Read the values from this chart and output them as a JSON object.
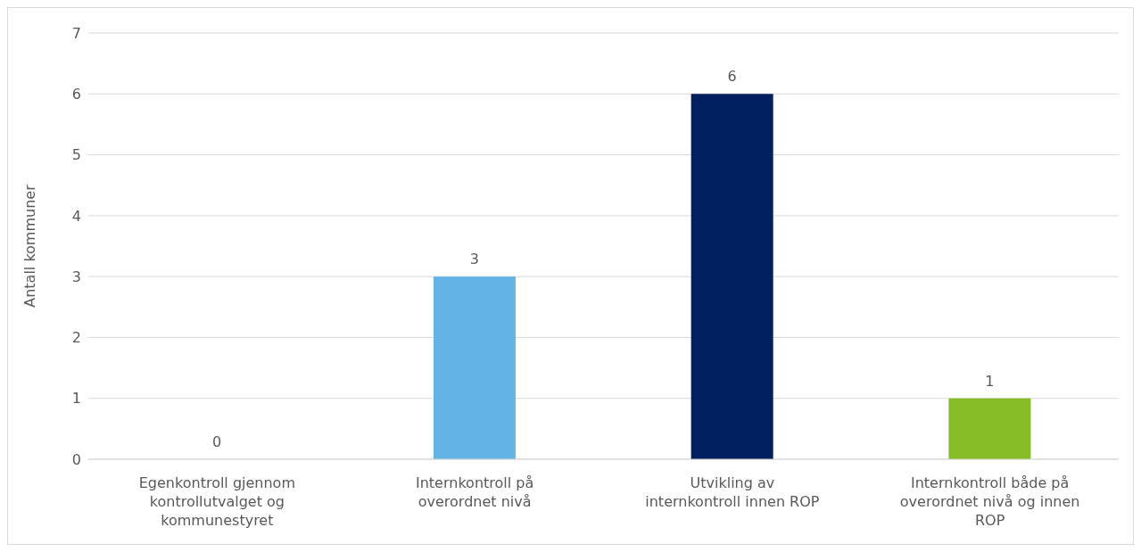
{
  "chart_data": {
    "type": "bar",
    "ylabel": "Antall kommuner",
    "categories": [
      "Egenkontroll gjennom kontrollutvalget og kommunestyret",
      "Internkontroll på overordnet nivå",
      "Utvikling av internkontroll innen ROP",
      "Internkontroll både på overordnet nivå og innen ROP"
    ],
    "values": [
      0,
      3,
      6,
      1
    ],
    "colors": [
      "#63b4e4",
      "#63b4e4",
      "#002060",
      "#86bc25"
    ],
    "ylim": [
      0,
      7
    ],
    "yticks": [
      0,
      1,
      2,
      3,
      4,
      5,
      6,
      7
    ],
    "grid": "y",
    "data_labels": true,
    "legend": false
  }
}
